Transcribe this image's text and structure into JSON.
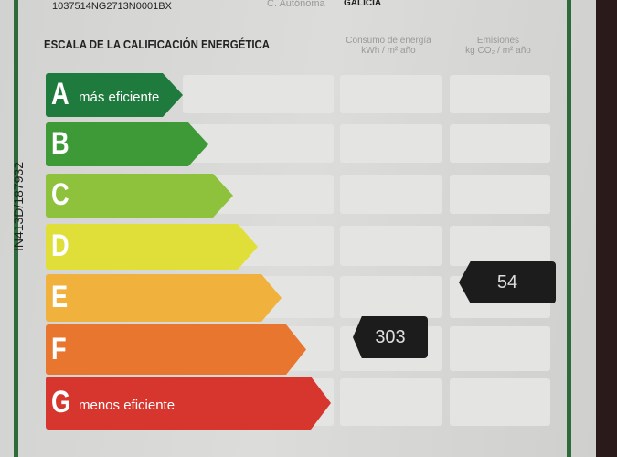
{
  "header": {
    "ref": "1037514NG2713N0001BX",
    "region_label": "C. Autónoma",
    "region": "GALICIA"
  },
  "side_code": "IN413D/187932",
  "scale": {
    "title": "ESCALA DE LA CALIFICACIÓN ENERGÉTICA",
    "col1": {
      "l1": "Consumo de energía",
      "l2": "kWh / m² año"
    },
    "col2": {
      "l1": "Emisiones",
      "l2": "kg CO₂ / m² año"
    },
    "grades": [
      {
        "letter": "A",
        "sub": "más eficiente",
        "color": "#1f7a3d"
      },
      {
        "letter": "B",
        "sub": "",
        "color": "#3d9a37"
      },
      {
        "letter": "C",
        "sub": "",
        "color": "#8ec13c"
      },
      {
        "letter": "D",
        "sub": "",
        "color": "#e0df3a"
      },
      {
        "letter": "E",
        "sub": "",
        "color": "#f0b23c"
      },
      {
        "letter": "F",
        "sub": "",
        "color": "#e8762f"
      },
      {
        "letter": "G",
        "sub": "menos eficiente",
        "color": "#d7362e"
      }
    ]
  },
  "consumption": {
    "value": "303",
    "grade": "F"
  },
  "emissions": {
    "value": "54",
    "grade": "E"
  }
}
